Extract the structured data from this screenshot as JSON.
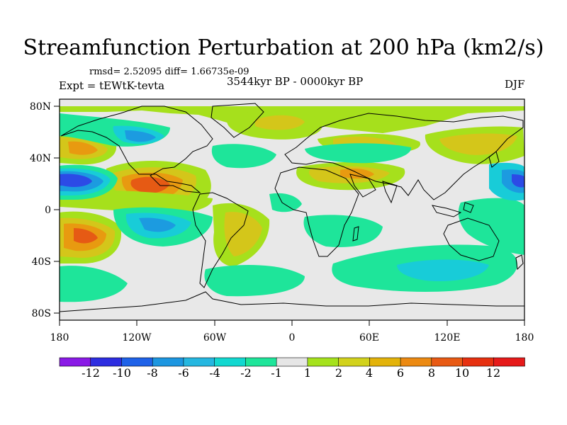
{
  "title": "Streamfunction Perturbation at 200 hPa (km2/s)",
  "stats": "rmsd= 2.52095 diff= 1.66735e-09",
  "expt": "Expt = tEWtK-tevta",
  "period": "3544kyr BP - 0000kyr BP",
  "season": "DJF",
  "axes": {
    "lat_ticks": [
      "80N",
      "40N",
      "0",
      "40S",
      "80S"
    ],
    "lon_ticks": [
      "180",
      "120W",
      "60W",
      "0",
      "60E",
      "120E",
      "180"
    ]
  },
  "colorbar": {
    "labels": [
      "-12",
      "-10",
      "-8",
      "-6",
      "-4",
      "-2",
      "-1",
      "1",
      "2",
      "4",
      "6",
      "8",
      "10",
      "12"
    ],
    "colors": [
      "#8a1ae6",
      "#2d2de0",
      "#1f62e8",
      "#1c96e0",
      "#25b7e0",
      "#12d8d0",
      "#1ee59a",
      "#e6e6e6",
      "#a5e21c",
      "#d2d21c",
      "#e3b30a",
      "#ec8a12",
      "#e85a14",
      "#e63010",
      "#e61a1a"
    ]
  },
  "colors": {
    "neutral": "#e8e8e8",
    "pos_light": "#a6e01c",
    "pos_mid": "#d4c61a",
    "pos_strong": "#e89a10",
    "pos_peak": "#e65a14",
    "neg_light": "#1ee59a",
    "neg_mid": "#18ccd8",
    "neg_strong": "#1c9be0",
    "neg_peak": "#2c4be6"
  }
}
